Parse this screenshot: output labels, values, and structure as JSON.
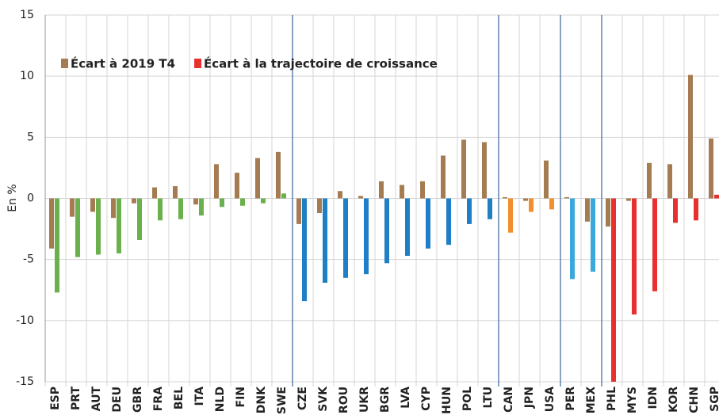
{
  "chart_data": {
    "type": "bar",
    "y_label": "En %",
    "categories": [
      "ESP",
      "PRT",
      "AUT",
      "DEU",
      "GBR",
      "FRA",
      "BEL",
      "ITA",
      "NLD",
      "FIN",
      "DNK",
      "SWE",
      "CZE",
      "SVK",
      "ROU",
      "UKR",
      "BGR",
      "LVA",
      "CYP",
      "HUN",
      "POL",
      "LTU",
      "CAN",
      "JPN",
      "USA",
      "PER",
      "MEX",
      "PHL",
      "MYS",
      "IDN",
      "KOR",
      "CHN",
      "SGP"
    ],
    "series": [
      {
        "name": "Écart à 2019 T4",
        "color": "#a57c52",
        "values": [
          -4.1,
          -1.5,
          -1.1,
          -1.6,
          -0.4,
          0.9,
          1.0,
          -0.5,
          2.8,
          2.1,
          3.3,
          3.8,
          -2.1,
          -1.2,
          0.6,
          0.2,
          1.4,
          1.1,
          1.4,
          3.5,
          4.8,
          4.6,
          0.1,
          -0.2,
          3.1,
          0.1,
          -1.9,
          -2.3,
          -0.2,
          2.9,
          2.8,
          10.1,
          4.9
        ]
      },
      {
        "name": "Écart à la trajectoire de croissance",
        "color": "#e8312f",
        "colors": [
          "#6ab04c",
          "#6ab04c",
          "#6ab04c",
          "#6ab04c",
          "#6ab04c",
          "#6ab04c",
          "#6ab04c",
          "#6ab04c",
          "#6ab04c",
          "#6ab04c",
          "#6ab04c",
          "#6ab04c",
          "#1f7fc4",
          "#1f7fc4",
          "#1f7fc4",
          "#1f7fc4",
          "#1f7fc4",
          "#1f7fc4",
          "#1f7fc4",
          "#1f7fc4",
          "#1f7fc4",
          "#1f7fc4",
          "#f28e2b",
          "#f28e2b",
          "#f28e2b",
          "#3aa8dc",
          "#3aa8dc",
          "#e8312f",
          "#e8312f",
          "#e8312f",
          "#e8312f",
          "#e8312f",
          "#e8312f"
        ],
        "values": [
          -7.7,
          -4.8,
          -4.6,
          -4.5,
          -3.4,
          -1.8,
          -1.7,
          -1.4,
          -0.7,
          -0.6,
          -0.4,
          0.4,
          -8.4,
          -6.9,
          -6.5,
          -6.2,
          -5.3,
          -4.7,
          -4.1,
          -3.8,
          -2.1,
          -1.7,
          -2.8,
          -1.1,
          -0.9,
          -6.6,
          -6.0,
          -15,
          -9.5,
          -7.6,
          -2.0,
          -1.8,
          0.3
        ]
      }
    ],
    "ylim": [
      -15,
      15
    ],
    "yticks": [
      -15,
      -10,
      -5,
      0,
      5,
      10,
      15
    ],
    "grid": true
  }
}
